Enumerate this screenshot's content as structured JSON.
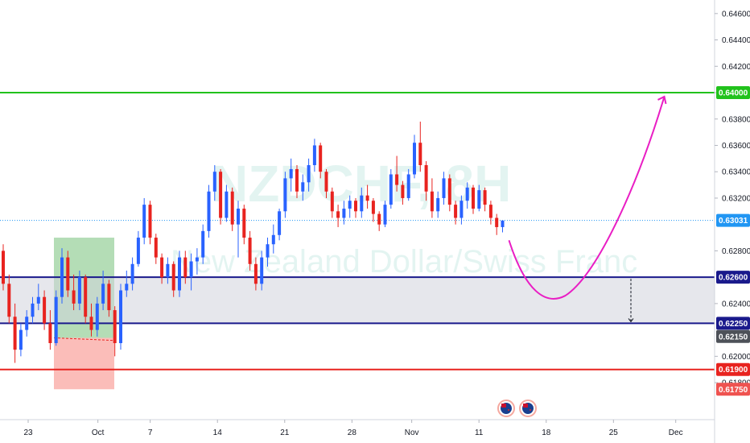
{
  "chart_data": {
    "type": "candlestick",
    "symbol": "NZDCHF, 8H",
    "instrument_name": "New Zealand Dollar/Swiss Franc",
    "x_ticks": [
      {
        "label": "23",
        "t": 2
      },
      {
        "label": "Oct",
        "t": 30
      },
      {
        "label": "7",
        "t": 51
      },
      {
        "label": "14",
        "t": 78
      },
      {
        "label": "21",
        "t": 105
      },
      {
        "label": "28",
        "t": 132
      },
      {
        "label": "Nov",
        "t": 156
      },
      {
        "label": "11",
        "t": 183
      },
      {
        "label": "18",
        "t": 210
      },
      {
        "label": "25",
        "t": 237
      },
      {
        "label": "Dec",
        "t": 262
      }
    ],
    "y_ticks": [
      "0.64600",
      "0.64400",
      "0.64200",
      "0.64000",
      "0.63800",
      "0.63600",
      "0.63400",
      "0.63200",
      "0.62800",
      "0.62400",
      "0.62000",
      "0.61800"
    ],
    "ylim": [
      0.6155,
      0.6466
    ],
    "price_tags": [
      {
        "value": 0.64,
        "label": "0.64000",
        "color": "#21c21c"
      },
      {
        "value": 0.63031,
        "label": "0.63031",
        "color": "#2196f3"
      },
      {
        "value": 0.626,
        "label": "0.62600",
        "color": "#1a1a8c"
      },
      {
        "value": 0.6225,
        "label": "0.62250",
        "color": "#1a1a8c"
      },
      {
        "value": 0.6215,
        "label": "0.62150",
        "color": "#4d5158"
      },
      {
        "value": 0.619,
        "label": "0.61900",
        "color": "#e8231f"
      },
      {
        "value": 0.6175,
        "label": "0.61750",
        "color": "#ef5350"
      }
    ],
    "levels": [
      {
        "name": "target",
        "value": 0.64,
        "color": "#21c21c"
      },
      {
        "name": "zone-top",
        "value": 0.626,
        "color": "#1a1a8c"
      },
      {
        "name": "zone-bottom",
        "value": 0.6225,
        "color": "#1a1a8c"
      },
      {
        "name": "stop",
        "value": 0.619,
        "color": "#e8231f"
      }
    ],
    "current_price": 0.63031,
    "colors": {
      "up": "#2962ff",
      "down": "#e8231f",
      "projection": "#e91ec4"
    },
    "candles": [
      [
        0.628,
        0.6285,
        0.625,
        0.6255
      ],
      [
        0.6255,
        0.6262,
        0.6225,
        0.623
      ],
      [
        0.623,
        0.624,
        0.6195,
        0.6205
      ],
      [
        0.6205,
        0.6225,
        0.62,
        0.622
      ],
      [
        0.622,
        0.6235,
        0.6215,
        0.623
      ],
      [
        0.623,
        0.6245,
        0.6225,
        0.624
      ],
      [
        0.624,
        0.6255,
        0.6235,
        0.6245
      ],
      [
        0.6245,
        0.625,
        0.622,
        0.6225
      ],
      [
        0.6225,
        0.6235,
        0.6205,
        0.621
      ],
      [
        0.621,
        0.625,
        0.6208,
        0.6245
      ],
      [
        0.6245,
        0.6282,
        0.624,
        0.6275
      ],
      [
        0.6275,
        0.628,
        0.6245,
        0.625
      ],
      [
        0.625,
        0.6262,
        0.6235,
        0.624
      ],
      [
        0.624,
        0.6265,
        0.6235,
        0.626
      ],
      [
        0.626,
        0.6262,
        0.6225,
        0.623
      ],
      [
        0.623,
        0.624,
        0.6215,
        0.622
      ],
      [
        0.622,
        0.6245,
        0.6215,
        0.624
      ],
      [
        0.624,
        0.6265,
        0.6235,
        0.6255
      ],
      [
        0.6255,
        0.6258,
        0.623,
        0.6235
      ],
      [
        0.6235,
        0.6238,
        0.62,
        0.621
      ],
      [
        0.621,
        0.6255,
        0.6205,
        0.625
      ],
      [
        0.625,
        0.6265,
        0.6245,
        0.6255
      ],
      [
        0.6255,
        0.6275,
        0.625,
        0.627
      ],
      [
        0.627,
        0.6295,
        0.6268,
        0.629
      ],
      [
        0.629,
        0.632,
        0.6285,
        0.6315
      ],
      [
        0.6315,
        0.6318,
        0.6285,
        0.629
      ],
      [
        0.629,
        0.6293,
        0.627,
        0.6275
      ],
      [
        0.6275,
        0.6278,
        0.6255,
        0.626
      ],
      [
        0.626,
        0.6275,
        0.6255,
        0.627
      ],
      [
        0.627,
        0.6272,
        0.6245,
        0.625
      ],
      [
        0.625,
        0.628,
        0.6245,
        0.6275
      ],
      [
        0.6275,
        0.628,
        0.6255,
        0.626
      ],
      [
        0.626,
        0.6278,
        0.625,
        0.6272
      ],
      [
        0.6272,
        0.6282,
        0.6262,
        0.6275
      ],
      [
        0.6275,
        0.63,
        0.627,
        0.6295
      ],
      [
        0.6295,
        0.633,
        0.629,
        0.6325
      ],
      [
        0.6325,
        0.6345,
        0.6318,
        0.634
      ],
      [
        0.634,
        0.6342,
        0.63,
        0.6305
      ],
      [
        0.6305,
        0.633,
        0.6302,
        0.6325
      ],
      [
        0.6325,
        0.6328,
        0.6295,
        0.63
      ],
      [
        0.63,
        0.6318,
        0.6275,
        0.6312
      ],
      [
        0.6312,
        0.6315,
        0.6285,
        0.629
      ],
      [
        0.629,
        0.6295,
        0.6265,
        0.627
      ],
      [
        0.627,
        0.6275,
        0.625,
        0.6255
      ],
      [
        0.6255,
        0.628,
        0.625,
        0.6275
      ],
      [
        0.6275,
        0.629,
        0.6268,
        0.6285
      ],
      [
        0.6285,
        0.63,
        0.6278,
        0.6292
      ],
      [
        0.6292,
        0.6312,
        0.6288,
        0.631
      ],
      [
        0.631,
        0.634,
        0.6305,
        0.6335
      ],
      [
        0.6335,
        0.635,
        0.6325,
        0.6342
      ],
      [
        0.6342,
        0.6345,
        0.632,
        0.6325
      ],
      [
        0.6325,
        0.6338,
        0.6318,
        0.6332
      ],
      [
        0.6332,
        0.635,
        0.6325,
        0.6345
      ],
      [
        0.6345,
        0.6365,
        0.634,
        0.636
      ],
      [
        0.636,
        0.6362,
        0.6335,
        0.634
      ],
      [
        0.634,
        0.6342,
        0.632,
        0.6325
      ],
      [
        0.6325,
        0.6328,
        0.6305,
        0.631
      ],
      [
        0.631,
        0.6315,
        0.6298,
        0.6305
      ],
      [
        0.6305,
        0.6318,
        0.63,
        0.6312
      ],
      [
        0.6312,
        0.6322,
        0.6305,
        0.6318
      ],
      [
        0.6318,
        0.632,
        0.6305,
        0.631
      ],
      [
        0.631,
        0.6328,
        0.6305,
        0.6322
      ],
      [
        0.6322,
        0.633,
        0.6312,
        0.6318
      ],
      [
        0.6318,
        0.632,
        0.6302,
        0.6308
      ],
      [
        0.6308,
        0.631,
        0.6295,
        0.63
      ],
      [
        0.63,
        0.6318,
        0.6298,
        0.6315
      ],
      [
        0.6315,
        0.6342,
        0.6312,
        0.6338
      ],
      [
        0.6338,
        0.6352,
        0.6325,
        0.633
      ],
      [
        0.633,
        0.6333,
        0.6315,
        0.632
      ],
      [
        0.632,
        0.6342,
        0.6318,
        0.6338
      ],
      [
        0.6338,
        0.6368,
        0.6335,
        0.6362
      ],
      [
        0.6362,
        0.6378,
        0.634,
        0.6345
      ],
      [
        0.6345,
        0.6348,
        0.6318,
        0.6325
      ],
      [
        0.6325,
        0.6335,
        0.6305,
        0.631
      ],
      [
        0.631,
        0.6325,
        0.6305,
        0.632
      ],
      [
        0.632,
        0.634,
        0.6315,
        0.6335
      ],
      [
        0.6335,
        0.6338,
        0.631,
        0.6315
      ],
      [
        0.6315,
        0.6318,
        0.63,
        0.6305
      ],
      [
        0.6305,
        0.6322,
        0.63,
        0.6318
      ],
      [
        0.6318,
        0.6332,
        0.6312,
        0.6328
      ],
      [
        0.6328,
        0.633,
        0.6308,
        0.6312
      ],
      [
        0.6312,
        0.633,
        0.631,
        0.6326
      ],
      [
        0.6326,
        0.6328,
        0.631,
        0.6315
      ],
      [
        0.6315,
        0.6318,
        0.63,
        0.6305
      ],
      [
        0.6305,
        0.6308,
        0.6292,
        0.6298
      ],
      [
        0.6298,
        0.6303,
        0.6294,
        0.6303
      ]
    ],
    "projection_label": "",
    "flag_count": 2
  }
}
